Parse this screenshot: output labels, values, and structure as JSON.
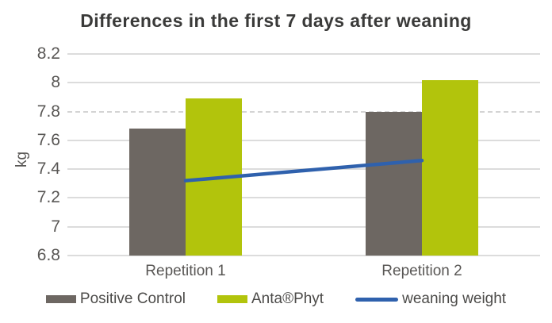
{
  "chart_data": {
    "type": "bar",
    "subtype": "grouped-bars-with-line-overlay",
    "title": "Differences in the first 7 days after weaning",
    "xlabel": "",
    "ylabel": "kg",
    "categories": [
      "Repetition 1",
      "Repetition 2"
    ],
    "series": [
      {
        "name": "Positive Control",
        "type": "bar",
        "color": "#6d6762",
        "values": [
          7.68,
          7.8
        ]
      },
      {
        "name": "Anta®Phyt",
        "type": "bar",
        "color": "#b2c40c",
        "values": [
          7.89,
          8.02
        ]
      },
      {
        "name": "weaning weight",
        "type": "line",
        "color": "#2f61ad",
        "values": [
          7.32,
          7.46
        ]
      }
    ],
    "ylim": [
      6.8,
      8.2
    ],
    "yticks": [
      "6.8",
      "7",
      "7.2",
      "7.4",
      "7.6",
      "7.8",
      "8",
      "8.2"
    ],
    "dashed_gridline_at": 7.8,
    "grid": "horizontal",
    "legend_position": "bottom",
    "colors": {
      "background": "#ffffff",
      "gridline": "#dcdcdc",
      "title_text": "#3a3a39",
      "axis_text": "#595755",
      "legend_text": "#4c4b49"
    }
  }
}
